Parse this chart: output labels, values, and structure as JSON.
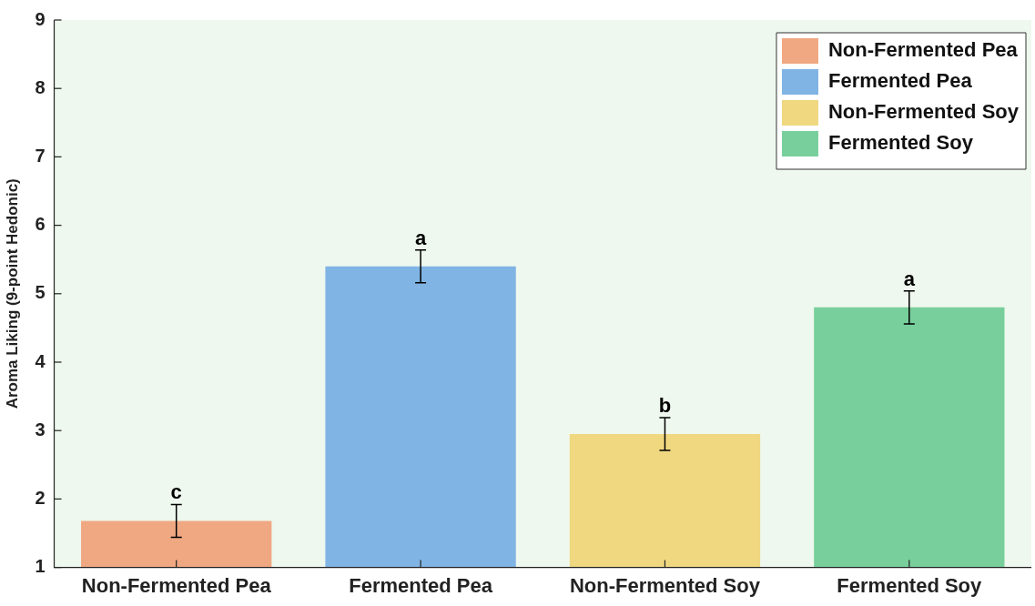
{
  "chart_data": {
    "type": "bar",
    "ylabel": "Aroma Liking (9-point Hedonic)",
    "categories": [
      "Non-Fermented Pea",
      "Fermented Pea",
      "Non-Fermented Soy",
      "Fermented Soy"
    ],
    "series": [
      {
        "name": "Non-Fermented Pea",
        "color": "#f0a882",
        "values": [
          1.68,
          null,
          null,
          null
        ],
        "errors": [
          0.24,
          null,
          null,
          null
        ]
      },
      {
        "name": "Fermented Pea",
        "color": "#80b4e4",
        "values": [
          null,
          5.4,
          null,
          null
        ],
        "errors": [
          null,
          0.24,
          null,
          null
        ]
      },
      {
        "name": "Non-Fermented Soy",
        "color": "#f0d880",
        "values": [
          null,
          null,
          2.95,
          null
        ],
        "errors": [
          null,
          null,
          0.24,
          null
        ]
      },
      {
        "name": "Fermented Soy",
        "color": "#78cf9c",
        "values": [
          null,
          null,
          null,
          4.8
        ],
        "errors": [
          null,
          null,
          null,
          0.24
        ]
      }
    ],
    "ylim": [
      1,
      9
    ],
    "yticks": [
      1,
      2,
      3,
      4,
      5,
      6,
      7,
      8,
      9
    ],
    "legend": "top right",
    "annotations": [
      {
        "text": "c",
        "x": "Non-Fermented Pea",
        "y": 1.92
      },
      {
        "text": "a",
        "x": "Fermented Pea",
        "y": 5.64
      },
      {
        "text": "b",
        "x": "Non-Fermented Soy",
        "y": 3.19
      },
      {
        "text": "a",
        "x": "Fermented Soy",
        "y": 5.04
      }
    ]
  }
}
